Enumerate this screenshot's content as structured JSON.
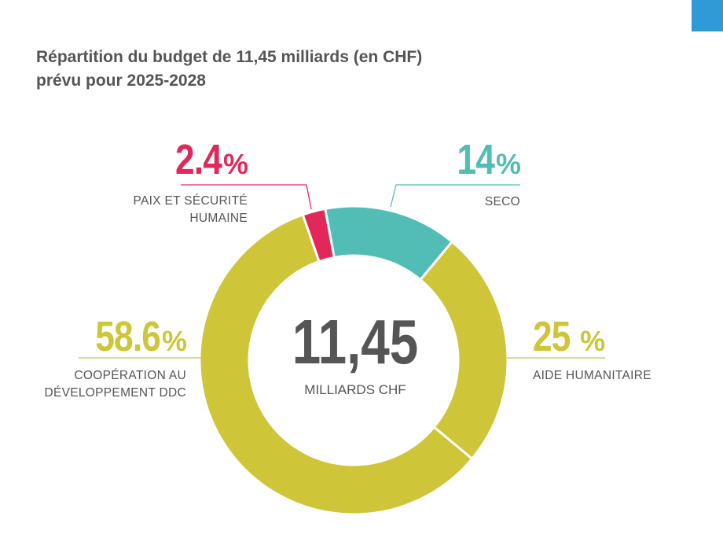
{
  "chart_data": {
    "type": "pie",
    "donut": true,
    "title": [
      "Répartition du budget de 11,45 milliards (en CHF)",
      "prévu pour 2025-2028"
    ],
    "center_value": "11,45",
    "center_label": "MILLIARDS CHF",
    "unit": "%",
    "categories": [
      "PAIX ET SÉCURITÉ HUMAINE",
      "SECO",
      "AIDE HUMANITAIRE",
      "COOPÉRATION AU DÉVELOPPEMENT DDC"
    ],
    "values": [
      2.4,
      14,
      25,
      58.6
    ],
    "colors": [
      "#e2285a",
      "#52bdb5",
      "#cfc538",
      "#cfc538"
    ]
  }
}
